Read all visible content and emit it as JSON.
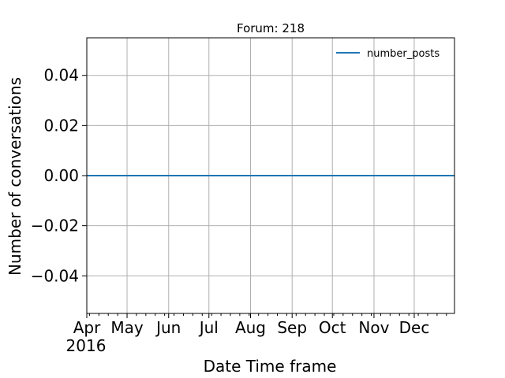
{
  "chart_data": {
    "type": "line",
    "title": "Forum: 218",
    "xlabel": "Date Time frame",
    "ylabel": "Number of conversations",
    "x_year_label": "2016",
    "x_ticks": [
      "Apr",
      "May",
      "Jun",
      "Jul",
      "Aug",
      "Sep",
      "Oct",
      "Nov",
      "Dec"
    ],
    "y_ticks": [
      "0.04",
      "0.02",
      "0.00",
      "−0.02",
      "−0.04"
    ],
    "y_tick_values": [
      0.04,
      0.02,
      0.0,
      -0.02,
      -0.04
    ],
    "ylim": [
      -0.055,
      0.055
    ],
    "xlim": [
      "2016-04",
      "2016-12"
    ],
    "grid": true,
    "legend_position": "top-right",
    "series": [
      {
        "name": "number_posts",
        "color": "#1f77b4",
        "x": [
          "2016-04",
          "2016-05",
          "2016-06",
          "2016-07",
          "2016-08",
          "2016-09",
          "2016-10",
          "2016-11",
          "2016-12"
        ],
        "values": [
          0,
          0,
          0,
          0,
          0,
          0,
          0,
          0,
          0
        ]
      }
    ]
  }
}
